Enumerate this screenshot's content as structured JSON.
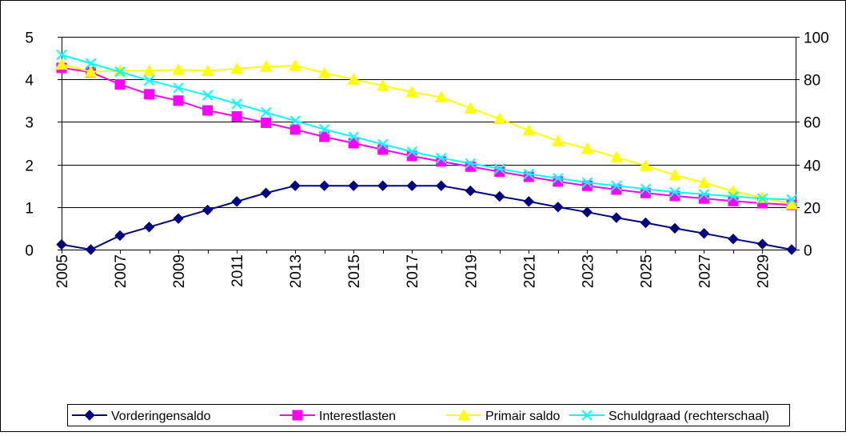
{
  "chart_data": {
    "type": "line",
    "title": "",
    "xlabel": "",
    "ylabel": "",
    "y2label": "",
    "x": [
      2005,
      2006,
      2007,
      2008,
      2009,
      2010,
      2011,
      2012,
      2013,
      2014,
      2015,
      2016,
      2017,
      2018,
      2019,
      2020,
      2021,
      2022,
      2023,
      2024,
      2025,
      2026,
      2027,
      2028,
      2029,
      2030
    ],
    "x_tick_labels": [
      "2005",
      "2007",
      "2009",
      "2011",
      "2013",
      "2015",
      "2017",
      "2019",
      "2021",
      "2023",
      "2025",
      "2027",
      "2029"
    ],
    "ylim": [
      0,
      5
    ],
    "y_ticks": [
      "0",
      "1",
      "2",
      "3",
      "4",
      "5"
    ],
    "y2lim": [
      0,
      100
    ],
    "y2_ticks": [
      "0",
      "20",
      "40",
      "60",
      "80",
      "100"
    ],
    "grid": true,
    "legend_position": "bottom",
    "series": [
      {
        "name": "Vorderingensaldo",
        "axis": "left",
        "color": "#000080",
        "marker": "diamond",
        "values": [
          0.12,
          0.0,
          0.33,
          0.53,
          0.73,
          0.93,
          1.13,
          1.33,
          1.5,
          1.5,
          1.5,
          1.5,
          1.5,
          1.5,
          1.38,
          1.25,
          1.13,
          1.0,
          0.88,
          0.75,
          0.63,
          0.5,
          0.38,
          0.25,
          0.13,
          0.0
        ]
      },
      {
        "name": "Interestlasten",
        "axis": "left",
        "color": "#FF00FF",
        "marker": "square",
        "values": [
          4.27,
          4.17,
          3.88,
          3.65,
          3.5,
          3.27,
          3.13,
          2.98,
          2.82,
          2.65,
          2.5,
          2.35,
          2.2,
          2.07,
          1.95,
          1.83,
          1.71,
          1.6,
          1.5,
          1.41,
          1.33,
          1.26,
          1.2,
          1.14,
          1.09,
          1.05
        ]
      },
      {
        "name": "Primair saldo",
        "axis": "left",
        "color": "#FFFF00",
        "marker": "triangle",
        "values": [
          4.35,
          4.18,
          4.2,
          4.2,
          4.23,
          4.2,
          4.25,
          4.3,
          4.32,
          4.15,
          4.0,
          3.85,
          3.7,
          3.58,
          3.32,
          3.07,
          2.8,
          2.55,
          2.37,
          2.17,
          1.97,
          1.75,
          1.57,
          1.37,
          1.22,
          1.07
        ]
      },
      {
        "name": "Schuldgraad (rechterschaal)",
        "axis": "right",
        "color": "#00FFFF",
        "marker": "x",
        "values": [
          91.5,
          87.5,
          83.5,
          79.5,
          76.0,
          72.5,
          68.5,
          64.5,
          60.5,
          56.5,
          53.0,
          49.5,
          46.0,
          43.0,
          40.5,
          38.0,
          35.5,
          33.5,
          31.5,
          30.0,
          28.5,
          27.0,
          26.0,
          25.0,
          24.0,
          23.5
        ]
      }
    ]
  }
}
